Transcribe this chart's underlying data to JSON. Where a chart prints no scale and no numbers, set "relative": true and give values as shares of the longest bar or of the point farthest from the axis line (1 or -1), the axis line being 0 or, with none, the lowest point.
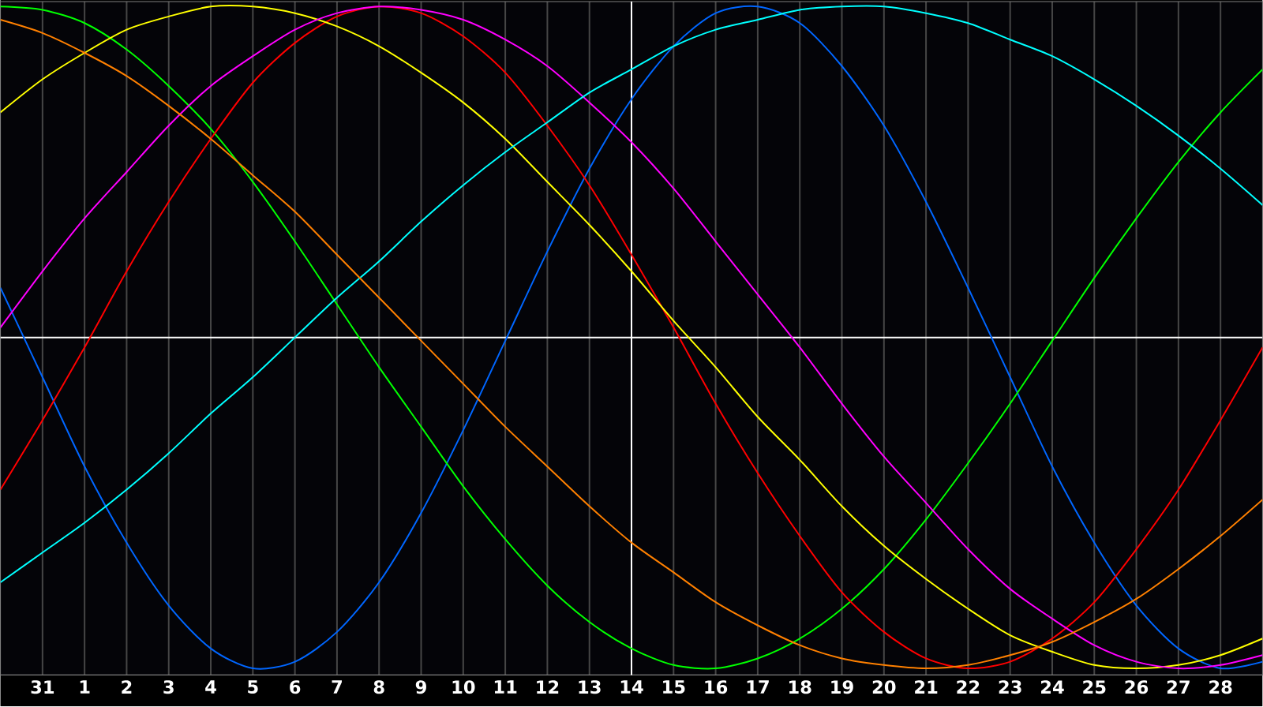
{
  "chart_data": {
    "type": "line",
    "relative": true,
    "grid": "x",
    "marker": "none",
    "line_style": "solid",
    "categories": [
      null,
      "31",
      "1",
      "2",
      "3",
      "4",
      "5",
      "6",
      "7",
      "8",
      "9",
      "10",
      "11",
      "12",
      "13",
      "14",
      "15",
      "16",
      "17",
      "18",
      "19",
      "20",
      "21",
      "22",
      "23",
      "24",
      "25",
      "26",
      "27",
      "28",
      null
    ],
    "ref_lines": [
      {
        "axis": "x",
        "value": "14",
        "color": "#ffffff"
      }
    ],
    "series": [
      {
        "color": "#0066ff",
        "values": [
          0.15,
          -0.12,
          -0.39,
          -0.62,
          -0.81,
          -0.94,
          -1,
          -0.98,
          -0.89,
          -0.74,
          -0.53,
          -0.28,
          -0.01,
          0.26,
          0.51,
          0.72,
          0.88,
          0.98,
          1,
          0.95,
          0.82,
          0.64,
          0.41,
          0.15,
          -0.12,
          -0.39,
          -0.62,
          -0.81,
          -0.94,
          -1,
          -0.98
        ]
      },
      {
        "color": "#00ff00",
        "values": [
          1,
          0.99,
          0.95,
          0.87,
          0.76,
          0.63,
          0.47,
          0.29,
          0.1,
          -0.09,
          -0.27,
          -0.45,
          -0.61,
          -0.75,
          -0.86,
          -0.94,
          -0.99,
          -1,
          -0.97,
          -0.91,
          -0.82,
          -0.7,
          -0.55,
          -0.38,
          -0.2,
          -0.01,
          0.18,
          0.36,
          0.53,
          0.68,
          0.81
        ]
      },
      {
        "color": "#ff0000",
        "values": [
          -0.46,
          -0.25,
          -0.03,
          0.2,
          0.41,
          0.6,
          0.77,
          0.89,
          0.97,
          1,
          0.98,
          0.91,
          0.8,
          0.64,
          0.46,
          0.25,
          0.03,
          -0.2,
          -0.41,
          -0.6,
          -0.77,
          -0.89,
          -0.97,
          -1,
          -0.98,
          -0.91,
          -0.8,
          -0.64,
          -0.46,
          -0.25,
          -0.03
        ]
      },
      {
        "color": "#ffff00",
        "values": [
          0.68,
          0.78,
          0.86,
          0.93,
          0.97,
          1,
          1,
          0.98,
          0.94,
          0.88,
          0.8,
          0.71,
          0.6,
          0.47,
          0.34,
          0.2,
          0.05,
          -0.09,
          -0.24,
          -0.37,
          -0.51,
          -0.63,
          -0.73,
          -0.82,
          -0.9,
          -0.95,
          -0.99,
          -1,
          -0.99,
          -0.96,
          -0.91
        ]
      },
      {
        "color": "#ff00ff",
        "values": [
          0.03,
          0.2,
          0.36,
          0.5,
          0.64,
          0.76,
          0.85,
          0.93,
          0.98,
          1,
          0.99,
          0.96,
          0.9,
          0.82,
          0.71,
          0.59,
          0.45,
          0.29,
          0.13,
          -0.03,
          -0.2,
          -0.36,
          -0.5,
          -0.64,
          -0.76,
          -0.85,
          -0.93,
          -0.98,
          -1,
          -0.99,
          -0.96
        ]
      },
      {
        "color": "#00ffff",
        "values": [
          -0.74,
          -0.65,
          -0.56,
          -0.46,
          -0.35,
          -0.23,
          -0.12,
          0,
          0.12,
          0.23,
          0.35,
          0.46,
          0.56,
          0.65,
          0.74,
          0.81,
          0.88,
          0.93,
          0.96,
          0.99,
          1,
          1,
          0.98,
          0.95,
          0.9,
          0.85,
          0.78,
          0.7,
          0.61,
          0.51,
          0.4
        ]
      },
      {
        "color": "#ff8000",
        "values": [
          0.96,
          0.92,
          0.86,
          0.79,
          0.7,
          0.6,
          0.49,
          0.38,
          0.25,
          0.12,
          -0.01,
          -0.14,
          -0.27,
          -0.39,
          -0.51,
          -0.62,
          -0.71,
          -0.8,
          -0.87,
          -0.93,
          -0.97,
          -0.99,
          -1,
          -0.99,
          -0.96,
          -0.92,
          -0.86,
          -0.79,
          -0.7,
          -0.6,
          -0.49
        ]
      }
    ]
  }
}
